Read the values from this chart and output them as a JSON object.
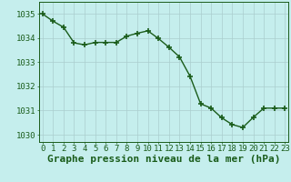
{
  "x": [
    0,
    1,
    2,
    3,
    4,
    5,
    6,
    7,
    8,
    9,
    10,
    11,
    12,
    13,
    14,
    15,
    16,
    17,
    18,
    19,
    20,
    21,
    22,
    23
  ],
  "y": [
    1035.0,
    1034.7,
    1034.45,
    1033.8,
    1033.72,
    1033.82,
    1033.82,
    1033.82,
    1034.08,
    1034.2,
    1034.3,
    1033.98,
    1033.62,
    1033.22,
    1032.42,
    1031.28,
    1031.1,
    1030.7,
    1030.42,
    1030.3,
    1030.72,
    1031.1,
    1031.1,
    1031.1
  ],
  "line_color": "#1a5c1a",
  "marker": "+",
  "marker_size": 5,
  "marker_lw": 1.2,
  "line_width": 1.0,
  "bg_color": "#c5eeed",
  "grid_color": "#aacece",
  "xlabel": "Graphe pression niveau de la mer (hPa)",
  "xlabel_color": "#1a5c1a",
  "xlabel_fontsize": 8,
  "tick_color": "#1a5c1a",
  "tick_fontsize": 6.5,
  "ylim": [
    1029.7,
    1035.5
  ],
  "yticks": [
    1030,
    1031,
    1032,
    1033,
    1034,
    1035
  ],
  "xticks": [
    0,
    1,
    2,
    3,
    4,
    5,
    6,
    7,
    8,
    9,
    10,
    11,
    12,
    13,
    14,
    15,
    16,
    17,
    18,
    19,
    20,
    21,
    22,
    23
  ],
  "xlim": [
    -0.3,
    23.3
  ]
}
